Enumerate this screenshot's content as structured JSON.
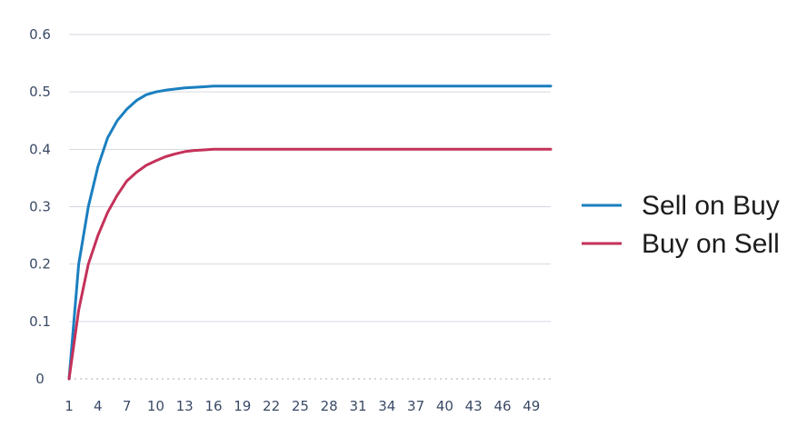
{
  "chart_data": {
    "type": "line",
    "title": "",
    "xlabel": "",
    "ylabel": "",
    "ylim": [
      0,
      0.6
    ],
    "y_ticks": [
      "0",
      "0.1",
      "0.2",
      "0.3",
      "0.4",
      "0.5",
      "0.6"
    ],
    "x_tick_labels": [
      "1",
      "4",
      "7",
      "10",
      "13",
      "16",
      "19",
      "22",
      "25",
      "28",
      "31",
      "34",
      "37",
      "40",
      "43",
      "46",
      "49"
    ],
    "x_range": [
      1,
      51
    ],
    "grid": "horizontal",
    "legend_position": "right",
    "x": [
      1,
      2,
      3,
      4,
      5,
      6,
      7,
      8,
      9,
      10,
      11,
      12,
      13,
      14,
      15,
      16,
      17,
      18,
      19,
      20,
      21,
      22,
      23,
      24,
      25,
      26,
      27,
      28,
      29,
      30,
      31,
      32,
      33,
      34,
      35,
      36,
      37,
      38,
      39,
      40,
      41,
      42,
      43,
      44,
      45,
      46,
      47,
      48,
      49,
      50,
      51
    ],
    "series": [
      {
        "name": "Sell on Buy",
        "color": "#1a7fc0",
        "values": [
          0.0,
          0.2,
          0.3,
          0.37,
          0.42,
          0.45,
          0.47,
          0.485,
          0.495,
          0.5,
          0.503,
          0.505,
          0.507,
          0.508,
          0.509,
          0.51,
          0.51,
          0.51,
          0.51,
          0.51,
          0.51,
          0.51,
          0.51,
          0.51,
          0.51,
          0.51,
          0.51,
          0.51,
          0.51,
          0.51,
          0.51,
          0.51,
          0.51,
          0.51,
          0.51,
          0.51,
          0.51,
          0.51,
          0.51,
          0.51,
          0.51,
          0.51,
          0.51,
          0.51,
          0.51,
          0.51,
          0.51,
          0.51,
          0.51,
          0.51,
          0.51
        ]
      },
      {
        "name": "Buy on Sell",
        "color": "#c43159",
        "values": [
          0.0,
          0.12,
          0.2,
          0.25,
          0.29,
          0.32,
          0.345,
          0.36,
          0.372,
          0.38,
          0.387,
          0.392,
          0.396,
          0.398,
          0.399,
          0.4,
          0.4,
          0.4,
          0.4,
          0.4,
          0.4,
          0.4,
          0.4,
          0.4,
          0.4,
          0.4,
          0.4,
          0.4,
          0.4,
          0.4,
          0.4,
          0.4,
          0.4,
          0.4,
          0.4,
          0.4,
          0.4,
          0.4,
          0.4,
          0.4,
          0.4,
          0.4,
          0.4,
          0.4,
          0.4,
          0.4,
          0.4,
          0.4,
          0.4,
          0.4,
          0.4
        ]
      }
    ]
  }
}
